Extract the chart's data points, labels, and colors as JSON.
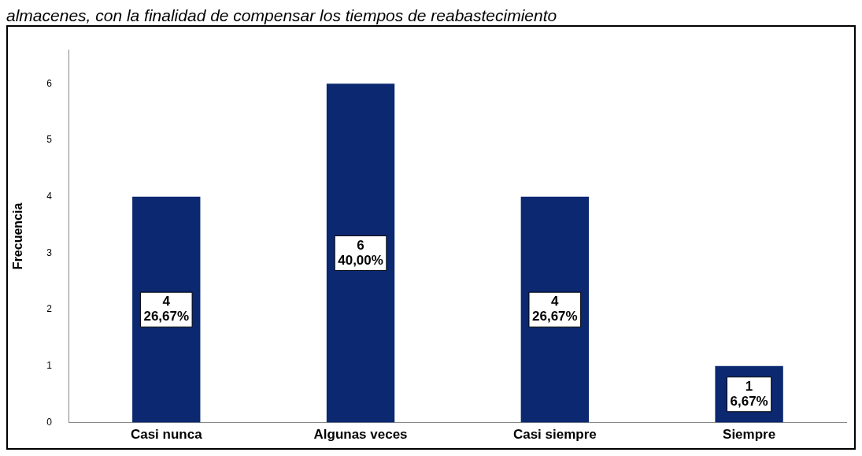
{
  "chart_data": {
    "type": "bar",
    "title": "almacenes, con la finalidad de compensar los tiempos de reabastecimiento",
    "ylabel": "Frecuencia",
    "categories": [
      "Casi nunca",
      "Algunas veces",
      "Casi siempre",
      "Siempre"
    ],
    "values": [
      4,
      6,
      4,
      1
    ],
    "color": "#0b2870",
    "value_labels": [
      "4\n26,67%",
      "6\n40,00%",
      "4\n26,67%",
      "1\n6,67%"
    ],
    "ylim": [
      0,
      6.6
    ],
    "yticks": [
      0,
      1,
      2,
      3,
      4,
      5,
      6
    ],
    "grid": false,
    "legend": false
  }
}
